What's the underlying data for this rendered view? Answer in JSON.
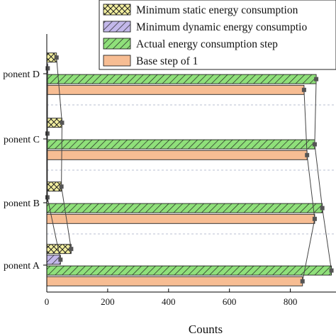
{
  "chart_data": {
    "type": "bar",
    "orientation": "horizontal",
    "xlabel": "Counts",
    "xlim": [
      0,
      950
    ],
    "xticks": [
      0,
      200,
      400,
      600,
      800
    ],
    "categories": [
      "Component A",
      "Component B",
      "Component C",
      "Component D"
    ],
    "category_labels": [
      "ponent A",
      "ponent B",
      "ponent C",
      "ponent D"
    ],
    "legend_position": "top-right",
    "series": [
      {
        "name": "Minimum static energy consumption",
        "values": [
          80,
          48,
          50,
          32
        ],
        "fill": "#f3ef9f",
        "hatch": "crosshatch"
      },
      {
        "name": "Minimum dynamic energy consumption",
        "values": [
          45,
          2,
          2,
          3
        ],
        "fill": "#c3b8ea",
        "hatch": "diagonal"
      },
      {
        "name": "Actual energy consumption step",
        "values": [
          935,
          905,
          880,
          885
        ],
        "fill": "#8fe07a",
        "hatch": "diagonal"
      },
      {
        "name": "Base step of 1",
        "values": [
          840,
          880,
          855,
          845
        ],
        "fill": "#f7bd93",
        "hatch": "none"
      }
    ],
    "legend_text_visible": [
      "Minimum static energy consumption",
      "Minimum dynamic energy consumptio",
      "Actual energy consumption step",
      "Base step of 1"
    ]
  }
}
